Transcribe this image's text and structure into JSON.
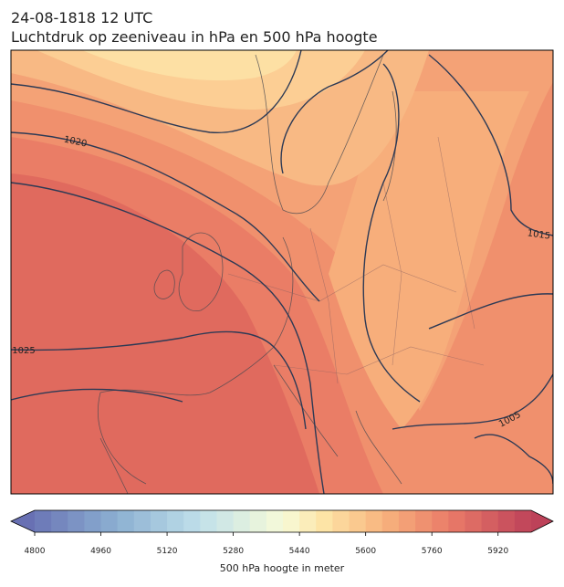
{
  "header": {
    "time": "24-08-1818 12 UTC",
    "title": "Luchtdruk op zeeniveau in hPa en 500 hPa hoogte"
  },
  "map": {
    "isobar_labels": [
      "1020",
      "1015",
      "1025",
      "1005"
    ]
  },
  "colorbar": {
    "range": [
      4800,
      6000
    ],
    "step": 40,
    "ticks": [
      4800,
      4960,
      5120,
      5280,
      5440,
      5600,
      5760,
      5920
    ],
    "color_stops": [
      [
        4800,
        "#6b76b6"
      ],
      [
        5000,
        "#8cb0d2"
      ],
      [
        5200,
        "#c0e0ea"
      ],
      [
        5400,
        "#f7fbd8"
      ],
      [
        5500,
        "#fde4a6"
      ],
      [
        5640,
        "#f8b47e"
      ],
      [
        5800,
        "#ea7c68"
      ],
      [
        6000,
        "#bd4259"
      ]
    ],
    "label": "500 hPa hoogte in meter"
  }
}
